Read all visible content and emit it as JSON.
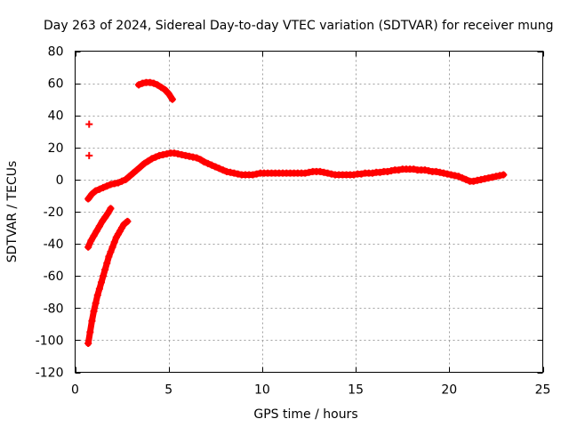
{
  "chart_data": {
    "type": "scatter",
    "title": "Day 263 of 2024, Sidereal Day-to-day VTEC variation (SDTVAR) for receiver mung",
    "xlabel": "GPS time / hours",
    "ylabel": "SDTVAR / TECUs",
    "xlim": [
      0,
      25
    ],
    "ylim": [
      -120,
      80
    ],
    "xticks": [
      0,
      5,
      10,
      15,
      20,
      25
    ],
    "yticks": [
      -120,
      -100,
      -80,
      -60,
      -40,
      -20,
      0,
      20,
      40,
      60,
      80
    ],
    "grid": true,
    "marker": "+",
    "color": "#ff0000",
    "series": [
      {
        "name": "main-track",
        "x": [
          0.7,
          0.9,
          1.1,
          1.3,
          1.5,
          1.7,
          1.9,
          2.1,
          2.3,
          2.5,
          2.7,
          2.9,
          3.1,
          3.3,
          3.5,
          3.7,
          3.9,
          4.1,
          4.3,
          4.5,
          4.7,
          4.9,
          5.1,
          5.3,
          5.5,
          5.7,
          5.9,
          6.1,
          6.3,
          6.5,
          6.7,
          6.9,
          7.1,
          7.3,
          7.5,
          7.7,
          7.9,
          8.1,
          8.3,
          8.5,
          8.7,
          8.9,
          9.1,
          9.3,
          9.5,
          9.7,
          9.9,
          10.1,
          10.3,
          10.5,
          10.7,
          10.9,
          11.1,
          11.3,
          11.5,
          11.7,
          11.9,
          12.1,
          12.3,
          12.5,
          12.7,
          12.9,
          13.1,
          13.3,
          13.5,
          13.7,
          13.9,
          14.1,
          14.3,
          14.5,
          14.7,
          14.9,
          15.1,
          15.3,
          15.5,
          15.7,
          15.9,
          16.1,
          16.3,
          16.5,
          16.7,
          16.9,
          17.1,
          17.3,
          17.5,
          17.7,
          17.9,
          18.1,
          18.3,
          18.5,
          18.7,
          18.9,
          19.1,
          19.3,
          19.5,
          19.7,
          19.9,
          20.1,
          20.3,
          20.5,
          20.7,
          20.9,
          21.1,
          21.3,
          21.5,
          21.7,
          21.9,
          22.1,
          22.3,
          22.5,
          22.7,
          22.9
        ],
        "y": [
          -12,
          -9,
          -7,
          -6,
          -5,
          -4,
          -3,
          -2.5,
          -2,
          -1,
          0,
          2,
          4,
          6,
          8,
          10,
          11.5,
          13,
          14,
          15,
          15.5,
          16,
          16.5,
          16.5,
          16,
          15.5,
          15,
          14.5,
          14,
          13.5,
          12.5,
          11,
          10,
          9,
          8,
          7,
          6,
          5,
          4.5,
          4,
          3.5,
          3,
          3,
          3,
          3,
          3.5,
          4,
          4,
          4,
          4,
          4,
          4,
          4,
          4,
          4,
          4,
          4,
          4,
          4,
          4.5,
          5,
          5,
          5,
          4.5,
          4,
          3.5,
          3,
          3,
          3,
          3,
          3,
          3,
          3.5,
          3.5,
          4,
          4,
          4,
          4.5,
          4.5,
          5,
          5,
          5.5,
          6,
          6,
          6.5,
          6.5,
          6.5,
          6.5,
          6,
          6,
          6,
          5.5,
          5,
          5,
          4.5,
          4,
          3.5,
          3,
          2.5,
          2,
          1,
          0,
          -1,
          -1,
          -0.5,
          0,
          0.5,
          1,
          1.5,
          2,
          2.5,
          3
        ]
      },
      {
        "name": "upper-arc",
        "x": [
          3.4,
          3.6,
          3.8,
          4.0,
          4.2,
          4.4,
          4.6,
          4.8,
          5.0,
          5.2
        ],
        "y": [
          59,
          60,
          60.5,
          60.5,
          60,
          59,
          57.5,
          56,
          53.5,
          50
        ]
      },
      {
        "name": "descending-track-1",
        "x": [
          0.7,
          0.85,
          1.0,
          1.15,
          1.3,
          1.45,
          1.6,
          1.75,
          1.9
        ],
        "y": [
          -42,
          -38,
          -35,
          -32,
          -29,
          -26,
          -23.5,
          -21,
          -18
        ]
      },
      {
        "name": "descending-track-2",
        "x": [
          0.7,
          0.8,
          0.9,
          1.0,
          1.1,
          1.2,
          1.3,
          1.4,
          1.5,
          1.6,
          1.7,
          1.8,
          1.9,
          2.0,
          2.1,
          2.2,
          2.3,
          2.4,
          2.5,
          2.6,
          2.7,
          2.8
        ],
        "y": [
          -102,
          -95,
          -88,
          -82,
          -77,
          -72,
          -68,
          -64,
          -60,
          -56,
          -52,
          -48,
          -45,
          -42,
          -39,
          -36,
          -34,
          -32,
          -30,
          -28,
          -27,
          -26
        ]
      },
      {
        "name": "isolated-points",
        "x": [
          0.75,
          0.75
        ],
        "y": [
          34.5,
          15
        ]
      }
    ]
  }
}
